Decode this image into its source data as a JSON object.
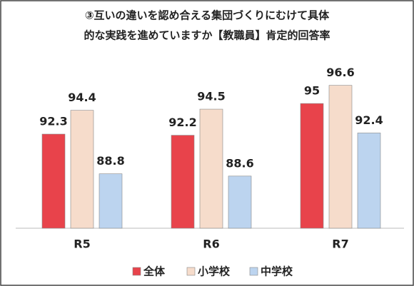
{
  "chart_data": {
    "type": "bar",
    "title": [
      "③互いの違いを認め合える集団づくりにむけて具体",
      "的な実践を進めていますか【教職員】肯定的回答率"
    ],
    "categories": [
      "R5",
      "R6",
      "R7"
    ],
    "series": [
      {
        "name": "全体",
        "color": "#e8434b",
        "values": [
          92.3,
          92.2,
          95
        ]
      },
      {
        "name": "小学校",
        "color": "#f6dccb",
        "values": [
          94.4,
          94.5,
          96.6
        ]
      },
      {
        "name": "中学校",
        "color": "#bcd4ef",
        "values": [
          88.8,
          88.6,
          92.4
        ]
      }
    ],
    "ylim": [
      84,
      98
    ]
  }
}
